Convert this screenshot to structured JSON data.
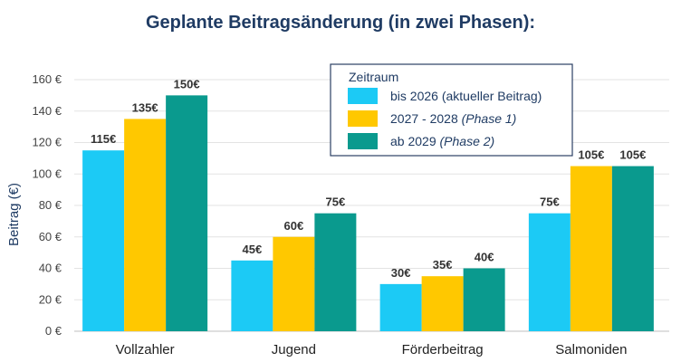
{
  "chart_data": {
    "type": "bar",
    "title": "Geplante Beitragsänderung (in zwei Phasen):",
    "xlabel": "",
    "ylabel": "Beitrag (€)",
    "ylim": [
      0,
      160
    ],
    "yticks": [
      0,
      20,
      40,
      60,
      80,
      100,
      120,
      140,
      160
    ],
    "ytick_labels": [
      "0 €",
      "20 €",
      "40 €",
      "60 €",
      "80 €",
      "100 €",
      "120 €",
      "140 €",
      "160 €"
    ],
    "grid": true,
    "categories": [
      "Vollzahler",
      "Jugend",
      "Förderbeitrag",
      "Salmoniden"
    ],
    "legend_title": "Zeitraum",
    "legend_position": "top-right",
    "series": [
      {
        "name": "bis 2026 (aktueller Beitrag)",
        "name_main": "bis 2026 (aktueller Beitrag)",
        "name_italic": "",
        "color": "#1ccaf5",
        "values": [
          115,
          45,
          30,
          75
        ],
        "labels": [
          "115€",
          "45€",
          "30€",
          "75€"
        ]
      },
      {
        "name": "2027 - 2028 (Phase 1)",
        "name_main": "2027 - 2028 ",
        "name_italic": "(Phase 1)",
        "color": "#ffc800",
        "values": [
          135,
          60,
          35,
          105
        ],
        "labels": [
          "135€",
          "60€",
          "35€",
          "105€"
        ]
      },
      {
        "name": "ab 2029 (Phase 2)",
        "name_main": "ab 2029 ",
        "name_italic": "(Phase 2)",
        "color": "#0a9a8e",
        "values": [
          150,
          75,
          40,
          105
        ],
        "labels": [
          "150€",
          "75€",
          "40€",
          "105€"
        ]
      }
    ]
  }
}
